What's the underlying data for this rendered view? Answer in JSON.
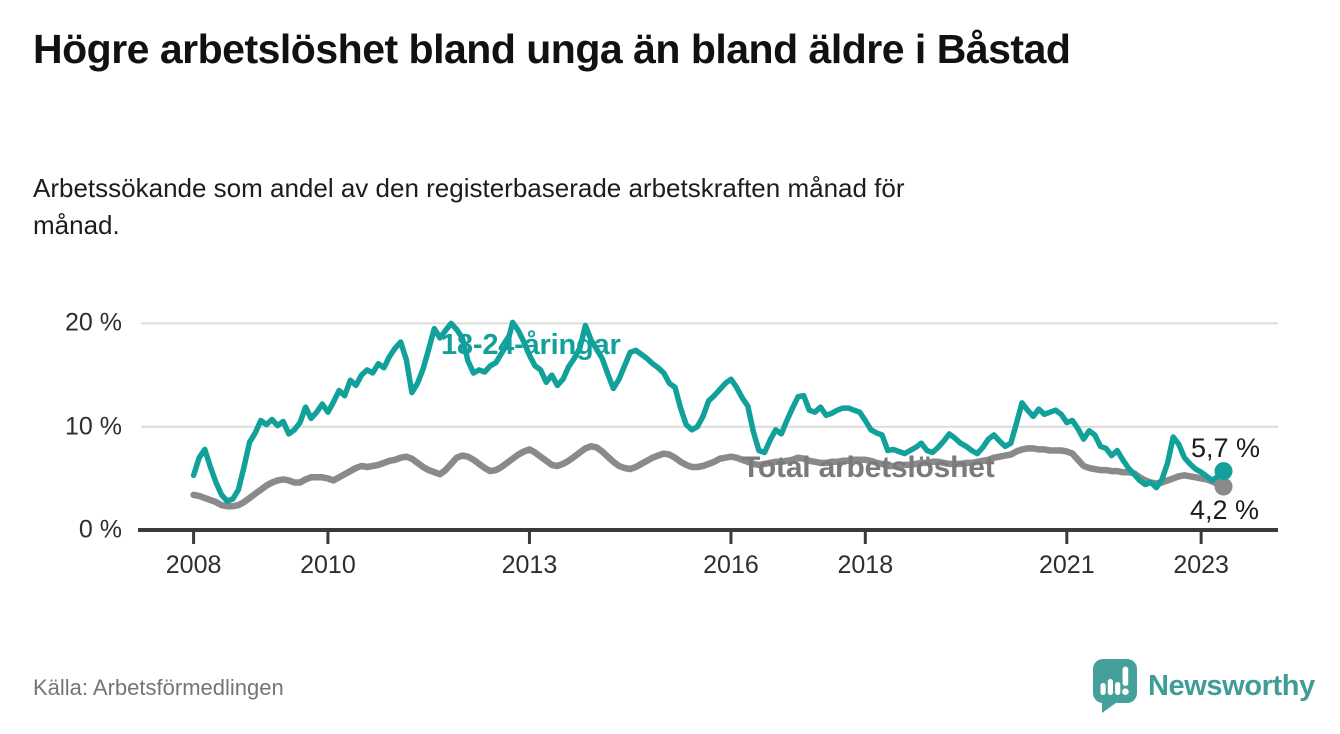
{
  "header": {
    "title": "Högre arbetslöshet bland unga än bland äldre i Båstad",
    "subtitle": "Arbetssökande som andel av den registerbaserade arbetskraften månad för månad."
  },
  "footer": {
    "source": "Källa: Arbetsförmedlingen",
    "logo_text": "Newsworthy"
  },
  "colors": {
    "youth_line": "#12A19A",
    "total_line": "#8A8A8A",
    "total_label": "#7A7A7A",
    "gridline": "#DCDCDC",
    "axis": "#3A3A3A",
    "logo_teal": "#46A09A",
    "text_dark": "#111111"
  },
  "chart_data": {
    "type": "line",
    "title": "Högre arbetslöshet bland unga än bland äldre i Båstad",
    "subtitle": "Arbetssökande som andel av den registerbaserade arbetskraften månad för månad.",
    "x_unit": "month",
    "x_start": "2008-01",
    "x_end": "2023-05",
    "ylim": [
      0,
      21
    ],
    "grid": "horizontal",
    "x_ticks": [
      2008,
      2010,
      2013,
      2016,
      2018,
      2021,
      2023
    ],
    "y_ticks": [
      {
        "value": 0,
        "label": "0 %"
      },
      {
        "value": 10,
        "label": "10 %"
      },
      {
        "value": 20,
        "label": "20 %"
      }
    ],
    "series": [
      {
        "name": "18-24-åringar",
        "color": "#12A19A",
        "end_label": "5,7 %",
        "end_value": 5.7,
        "values": [
          5.3,
          7.0,
          7.8,
          6.1,
          4.6,
          3.4,
          2.8,
          3.0,
          3.9,
          6.1,
          8.5,
          9.4,
          10.6,
          10.2,
          10.7,
          10.1,
          10.5,
          9.3,
          9.7,
          10.4,
          11.9,
          10.8,
          11.4,
          12.2,
          11.4,
          12.4,
          13.5,
          13.0,
          14.5,
          14.0,
          15.0,
          15.5,
          15.2,
          16.1,
          15.7,
          16.8,
          17.6,
          18.2,
          16.5,
          13.3,
          14.2,
          15.6,
          17.5,
          19.5,
          18.6,
          19.3,
          20.0,
          19.4,
          18.6,
          16.4,
          15.2,
          15.5,
          15.3,
          15.9,
          16.2,
          17.1,
          18.0,
          20.1,
          19.3,
          18.2,
          16.9,
          15.9,
          15.5,
          14.3,
          15.0,
          14.0,
          14.6,
          15.8,
          16.6,
          17.6,
          19.8,
          18.4,
          17.5,
          16.6,
          15.1,
          13.7,
          14.6,
          15.9,
          17.2,
          17.4,
          17.0,
          16.6,
          16.1,
          15.7,
          15.2,
          14.2,
          13.8,
          11.8,
          10.2,
          9.7,
          10.0,
          11.0,
          12.5,
          13.0,
          13.6,
          14.2,
          14.6,
          13.8,
          12.8,
          12.0,
          9.5,
          7.7,
          7.5,
          8.7,
          9.7,
          9.3,
          10.6,
          11.8,
          12.9,
          13.0,
          11.6,
          11.4,
          11.9,
          11.1,
          11.3,
          11.6,
          11.8,
          11.8,
          11.6,
          11.4,
          10.6,
          9.7,
          9.4,
          9.2,
          7.7,
          7.8,
          7.6,
          7.4,
          7.7,
          8.0,
          8.4,
          7.7,
          7.5,
          8.0,
          8.6,
          9.3,
          8.9,
          8.4,
          8.1,
          7.7,
          7.4,
          8.0,
          8.8,
          9.2,
          8.6,
          8.1,
          8.4,
          10.3,
          12.3,
          11.6,
          11.0,
          11.7,
          11.2,
          11.4,
          11.6,
          11.2,
          10.4,
          10.6,
          9.8,
          8.8,
          9.6,
          9.2,
          8.1,
          7.9,
          7.2,
          7.7,
          6.8,
          6.0,
          5.4,
          4.8,
          4.4,
          4.6,
          4.1,
          4.9,
          6.5,
          9.0,
          8.3,
          7.0,
          6.4,
          5.9,
          5.6,
          5.2,
          4.8,
          5.2,
          5.7
        ]
      },
      {
        "name": "Total arbetslöshet",
        "color": "#8A8A8A",
        "end_label": "4,2 %",
        "end_value": 4.2,
        "values": [
          3.4,
          3.3,
          3.1,
          2.9,
          2.7,
          2.4,
          2.3,
          2.3,
          2.4,
          2.7,
          3.1,
          3.5,
          3.9,
          4.3,
          4.6,
          4.8,
          4.9,
          4.8,
          4.6,
          4.6,
          4.9,
          5.1,
          5.1,
          5.1,
          5.0,
          4.8,
          5.1,
          5.4,
          5.7,
          6.0,
          6.2,
          6.1,
          6.2,
          6.3,
          6.5,
          6.7,
          6.8,
          7.0,
          7.1,
          6.9,
          6.5,
          6.1,
          5.8,
          5.6,
          5.4,
          5.8,
          6.4,
          7.0,
          7.2,
          7.1,
          6.8,
          6.4,
          6.0,
          5.7,
          5.8,
          6.1,
          6.5,
          6.9,
          7.3,
          7.6,
          7.8,
          7.5,
          7.1,
          6.7,
          6.3,
          6.2,
          6.4,
          6.7,
          7.1,
          7.5,
          7.9,
          8.1,
          8.0,
          7.6,
          7.1,
          6.6,
          6.2,
          6.0,
          5.9,
          6.1,
          6.4,
          6.7,
          7.0,
          7.2,
          7.4,
          7.3,
          7.0,
          6.6,
          6.3,
          6.1,
          6.1,
          6.2,
          6.4,
          6.6,
          6.9,
          7.0,
          7.1,
          7.0,
          6.8,
          6.6,
          6.4,
          6.3,
          6.4,
          6.5,
          6.6,
          6.6,
          6.7,
          6.8,
          7.0,
          6.9,
          6.7,
          6.6,
          6.5,
          6.5,
          6.6,
          6.6,
          6.7,
          6.7,
          6.8,
          6.8,
          6.8,
          6.7,
          6.5,
          6.4,
          6.2,
          6.2,
          6.2,
          6.3,
          6.3,
          6.4,
          6.5,
          6.5,
          6.6,
          6.6,
          6.5,
          6.4,
          6.4,
          6.4,
          6.5,
          6.5,
          6.6,
          6.7,
          6.8,
          7.0,
          7.1,
          7.2,
          7.3,
          7.6,
          7.8,
          7.9,
          7.9,
          7.8,
          7.8,
          7.7,
          7.7,
          7.7,
          7.6,
          7.4,
          6.8,
          6.2,
          6.0,
          5.9,
          5.8,
          5.8,
          5.7,
          5.7,
          5.6,
          5.6,
          5.5,
          5.1,
          4.8,
          4.6,
          4.5,
          4.6,
          4.8,
          5.0,
          5.2,
          5.3,
          5.2,
          5.1,
          5.0,
          4.9,
          4.7,
          4.4,
          4.2
        ]
      }
    ]
  }
}
